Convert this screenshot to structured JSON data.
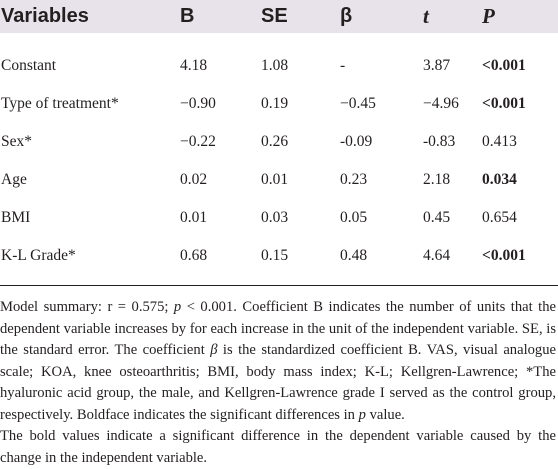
{
  "table": {
    "headers": {
      "variables": "Variables",
      "b": "B",
      "se": "SE",
      "beta": "β",
      "t": "t",
      "p": "P"
    },
    "rows": [
      {
        "variable": "Constant",
        "b": "4.18",
        "se": "1.08",
        "beta": "-",
        "t": "3.87",
        "p": "<0.001",
        "p_bold": true
      },
      {
        "variable": "Type of treatment*",
        "b": "−0.90",
        "se": "0.19",
        "beta": "−0.45",
        "t": "−4.96",
        "p": "<0.001",
        "p_bold": true
      },
      {
        "variable": "Sex*",
        "b": "−0.22",
        "se": "0.26",
        "beta": "-0.09",
        "t": "-0.83",
        "p": "0.413",
        "p_bold": false
      },
      {
        "variable": "Age",
        "b": "0.02",
        "se": "0.01",
        "beta": "0.23",
        "t": "2.18",
        "p": "0.034",
        "p_bold": true
      },
      {
        "variable": "BMI",
        "b": "0.01",
        "se": "0.03",
        "beta": "0.05",
        "t": "0.45",
        "p": "0.654",
        "p_bold": false
      },
      {
        "variable": "K-L Grade*",
        "b": "0.68",
        "se": "0.15",
        "beta": "0.48",
        "t": "4.64",
        "p": "<0.001",
        "p_bold": true
      }
    ]
  },
  "notes": {
    "summary_pre": "Model summary: r = 0.575; ",
    "summary_p": "p",
    "summary_mid": " < 0.001. Coefficient B indicates the number of units that the dependent variable increases by for each increase in the unit of the independent variable. SE, is the standard error. The coefficient ",
    "summary_beta": "β",
    "summary_post": " is the standardized coefficient B. VAS, visual analogue scale; KOA, knee osteoarthritis; BMI, body mass index; K-L; Kellgren-Lawrence; *The hyaluronic acid group, the male, and Kellgren-Lawrence grade I served as the control group, respectively. Boldface indicates the significant differences in ",
    "summary_p2": "p",
    "summary_end": " value.",
    "bold_note": "The bold values indicate a significant difference in the dependent variable caused by the change in the independent variable."
  }
}
